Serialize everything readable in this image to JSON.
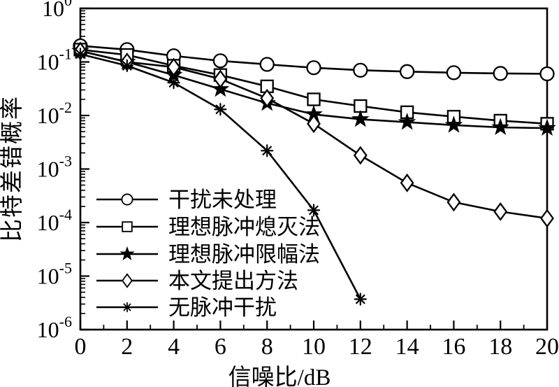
{
  "chart_data": {
    "type": "line",
    "title": "",
    "xlabel": "信噪比/dB",
    "ylabel": "比特差错概率",
    "x_axis": {
      "min": 0,
      "max": 20,
      "major_ticks": [
        0,
        2,
        4,
        6,
        8,
        10,
        12,
        14,
        16,
        18,
        20
      ],
      "minor_tick_step": 1
    },
    "y_axis": {
      "scale": "log",
      "min": 1e-06,
      "max": 1,
      "tick_exponents": [
        0,
        -1,
        -2,
        -3,
        -4,
        -5,
        -6
      ],
      "tick_base": "10",
      "log_minor_ticks": true
    },
    "grid": false,
    "legend_position": "lower-left-inside",
    "tick_direction": "in",
    "line_color": "#000000",
    "background_color": "#ffffff",
    "x": [
      0,
      2,
      4,
      6,
      8,
      10,
      12,
      14,
      16,
      18,
      20
    ],
    "series": [
      {
        "name": "干扰未处理",
        "marker": "circle",
        "values": [
          0.2,
          0.17,
          0.13,
          0.105,
          0.09,
          0.078,
          0.07,
          0.066,
          0.063,
          0.061,
          0.06
        ]
      },
      {
        "name": "理想脉冲熄灭法",
        "marker": "square",
        "values": [
          0.17,
          0.135,
          0.085,
          0.057,
          0.035,
          0.02,
          0.015,
          0.0115,
          0.0095,
          0.008,
          0.007
        ]
      },
      {
        "name": "理想脉冲限幅法",
        "marker": "star",
        "values": [
          0.16,
          0.1,
          0.057,
          0.031,
          0.017,
          0.0105,
          0.0085,
          0.0075,
          0.0066,
          0.006,
          0.0058
        ]
      },
      {
        "name": "本文提出方法",
        "marker": "diamond",
        "values": [
          0.16,
          0.1,
          0.08,
          0.048,
          0.021,
          0.007,
          0.0018,
          0.00055,
          0.00024,
          0.00016,
          0.00012
        ]
      },
      {
        "name": "无脉冲干扰",
        "marker": "asterisk",
        "values": [
          0.14,
          0.085,
          0.041,
          0.013,
          0.0022,
          0.00017,
          3.7e-06
        ]
      }
    ]
  }
}
